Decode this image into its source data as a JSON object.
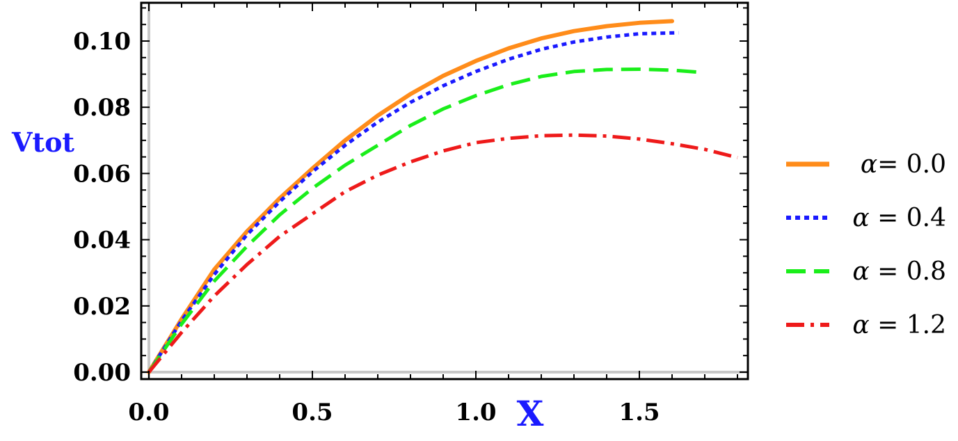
{
  "chart_data": {
    "type": "line",
    "xlabel": "X",
    "ylabel": "Vtot",
    "xlim": [
      0.0,
      1.8
    ],
    "ylim": [
      0.0,
      0.11
    ],
    "x_ticks": [
      0.0,
      0.5,
      1.0,
      1.5
    ],
    "x_tick_labels": [
      "0.0",
      "0.5",
      "1.0",
      "1.5"
    ],
    "y_ticks": [
      0.0,
      0.02,
      0.04,
      0.06,
      0.08,
      0.1
    ],
    "y_tick_labels": [
      "0.00",
      "0.02",
      "0.04",
      "0.06",
      "0.08",
      "0.10"
    ],
    "legend_position": "right",
    "grid": false,
    "series": [
      {
        "name": "α= 0.0",
        "color": "#ff8c1a",
        "style": "solid",
        "points": [
          [
            0.0,
            0.0
          ],
          [
            0.1,
            0.016
          ],
          [
            0.2,
            0.031
          ],
          [
            0.3,
            0.0425
          ],
          [
            0.4,
            0.0525
          ],
          [
            0.5,
            0.0615
          ],
          [
            0.6,
            0.07
          ],
          [
            0.7,
            0.0775
          ],
          [
            0.8,
            0.084
          ],
          [
            0.9,
            0.0895
          ],
          [
            1.0,
            0.094
          ],
          [
            1.1,
            0.0978
          ],
          [
            1.2,
            0.1008
          ],
          [
            1.3,
            0.103
          ],
          [
            1.4,
            0.1045
          ],
          [
            1.5,
            0.1055
          ],
          [
            1.6,
            0.106
          ]
        ]
      },
      {
        "name": "α = 0.4",
        "color": "#1a1aff",
        "style": "dotted",
        "points": [
          [
            0.0,
            0.0
          ],
          [
            0.1,
            0.0155
          ],
          [
            0.2,
            0.0295
          ],
          [
            0.3,
            0.0415
          ],
          [
            0.4,
            0.0515
          ],
          [
            0.5,
            0.0605
          ],
          [
            0.6,
            0.0685
          ],
          [
            0.7,
            0.0755
          ],
          [
            0.8,
            0.0815
          ],
          [
            0.9,
            0.0865
          ],
          [
            1.0,
            0.0908
          ],
          [
            1.1,
            0.0945
          ],
          [
            1.2,
            0.0975
          ],
          [
            1.3,
            0.0997
          ],
          [
            1.4,
            0.1012
          ],
          [
            1.5,
            0.1022
          ],
          [
            1.62,
            0.1025
          ]
        ]
      },
      {
        "name": "α = 0.8",
        "color": "#1aee1a",
        "style": "dashed",
        "points": [
          [
            0.0,
            0.0
          ],
          [
            0.1,
            0.0145
          ],
          [
            0.2,
            0.0275
          ],
          [
            0.3,
            0.038
          ],
          [
            0.4,
            0.0475
          ],
          [
            0.5,
            0.0555
          ],
          [
            0.6,
            0.0625
          ],
          [
            0.7,
            0.0685
          ],
          [
            0.8,
            0.0745
          ],
          [
            0.9,
            0.0795
          ],
          [
            1.0,
            0.0835
          ],
          [
            1.1,
            0.0868
          ],
          [
            1.2,
            0.0893
          ],
          [
            1.3,
            0.0908
          ],
          [
            1.4,
            0.0914
          ],
          [
            1.5,
            0.0915
          ],
          [
            1.6,
            0.0912
          ],
          [
            1.68,
            0.0906
          ]
        ]
      },
      {
        "name": "α = 1.2",
        "color": "#ee1a1a",
        "style": "dashdot",
        "points": [
          [
            0.0,
            0.0
          ],
          [
            0.1,
            0.012
          ],
          [
            0.2,
            0.023
          ],
          [
            0.3,
            0.0325
          ],
          [
            0.4,
            0.041
          ],
          [
            0.5,
            0.0478
          ],
          [
            0.6,
            0.0545
          ],
          [
            0.7,
            0.0595
          ],
          [
            0.8,
            0.0635
          ],
          [
            0.9,
            0.0668
          ],
          [
            1.0,
            0.0693
          ],
          [
            1.1,
            0.0706
          ],
          [
            1.2,
            0.0714
          ],
          [
            1.3,
            0.0716
          ],
          [
            1.4,
            0.0713
          ],
          [
            1.5,
            0.0704
          ],
          [
            1.6,
            0.069
          ],
          [
            1.7,
            0.0673
          ],
          [
            1.8,
            0.0648
          ]
        ]
      }
    ]
  }
}
